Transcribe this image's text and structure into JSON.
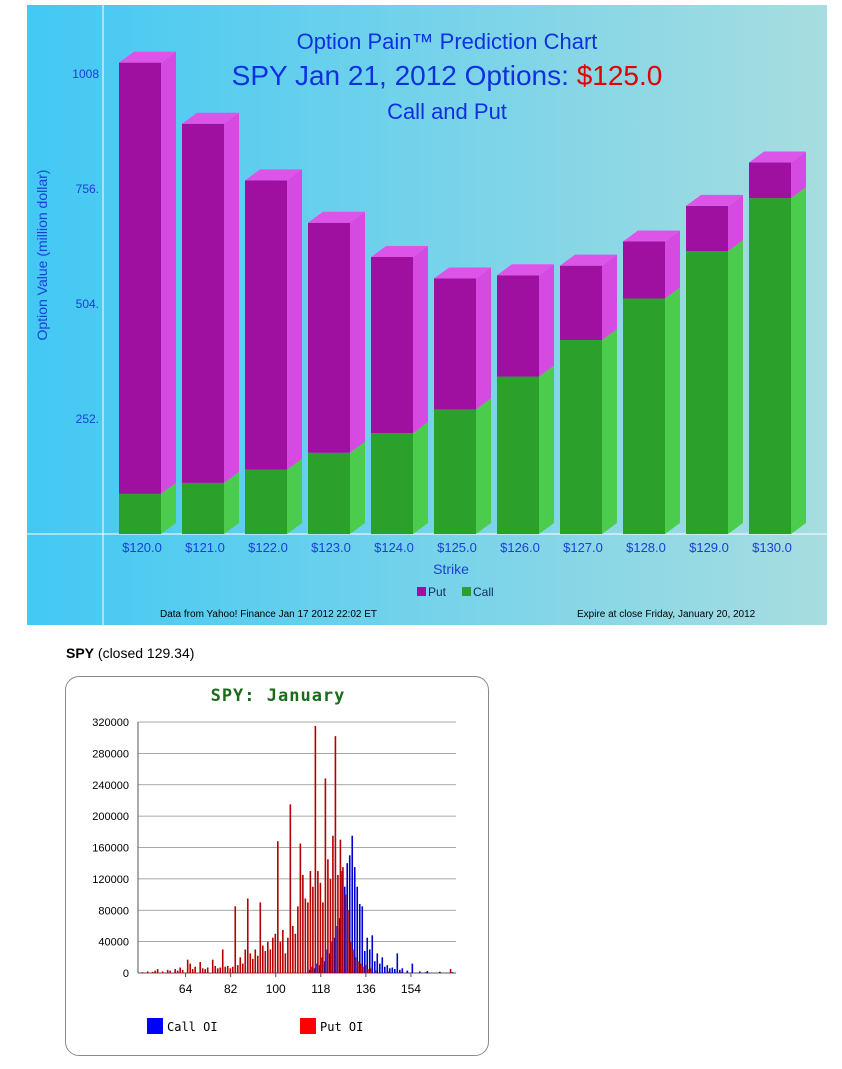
{
  "colors": {
    "bg_left": "#42c8f4",
    "bg_right": "#a7dde0",
    "title_blue": "#1030e0",
    "price_red": "#e00000",
    "axis_text": "#1a40d8",
    "put_front": "#a010a0",
    "put_top": "#dd55e8",
    "put_side": "#d54ae0",
    "call_front": "#2ba02b",
    "call_side": "#4ccc4c",
    "call_oi": "#0000cc",
    "put_oi": "#b40000",
    "legend_call": "#0000ff",
    "legend_put": "#ff0000",
    "chart2_title": "#1a6b1a"
  },
  "chart_data": [
    {
      "type": "bar",
      "stacked": true,
      "title": "Option Pain™ Prediction Chart",
      "subtitle_prefix": "SPY Jan 21, 2012 Options: ",
      "subtitle_price": "$125.0",
      "subtitle2": "Call and Put",
      "xlabel": "Strike",
      "ylabel": "Option Value (million dollar)",
      "ylim": [
        0,
        1008
      ],
      "yticks": [
        252,
        504,
        756,
        1008
      ],
      "ytick_labels": [
        "252.",
        "504.",
        "756.",
        "1008"
      ],
      "categories": [
        "$120.0",
        "$121.0",
        "$122.0",
        "$123.0",
        "$124.0",
        "$125.0",
        "$126.0",
        "$127.0",
        "$128.0",
        "$129.0",
        "$130.0"
      ],
      "series": [
        {
          "name": "Call",
          "values": [
            88,
            112,
            141,
            178,
            221,
            273,
            345,
            425,
            516,
            620,
            736
          ]
        },
        {
          "name": "Put",
          "values": [
            945,
            787,
            634,
            504,
            386,
            287,
            222,
            163,
            125,
            99,
            78
          ]
        }
      ],
      "legend": [
        "Put",
        "Call"
      ],
      "legend_position": "bottom",
      "footer_left": "Data from Yahoo! Finance Jan 17 2012 22:02 ET",
      "footer_right": "Expire at close Friday, January 20, 2012"
    },
    {
      "type": "bar",
      "title": "SPY: January",
      "xlim": [
        45,
        172
      ],
      "ylim": [
        0,
        320000
      ],
      "xticks": [
        64,
        82,
        100,
        118,
        136,
        154
      ],
      "yticks": [
        0,
        40000,
        80000,
        120000,
        160000,
        200000,
        240000,
        280000,
        320000
      ],
      "grid": true,
      "legend_position": "bottom",
      "series": [
        {
          "name": "Call OI",
          "points": [
            [
              113,
              4000
            ],
            [
              114,
              8000
            ],
            [
              115,
              6000
            ],
            [
              116,
              12000
            ],
            [
              117,
              10000
            ],
            [
              118,
              20000
            ],
            [
              119,
              15000
            ],
            [
              120,
              30000
            ],
            [
              121,
              25000
            ],
            [
              122,
              40000
            ],
            [
              123,
              45000
            ],
            [
              124,
              60000
            ],
            [
              125,
              70000
            ],
            [
              126,
              130000
            ],
            [
              127,
              110000
            ],
            [
              128,
              140000
            ],
            [
              129,
              150000
            ],
            [
              130,
              175000
            ],
            [
              131,
              135000
            ],
            [
              132,
              110000
            ],
            [
              133,
              88000
            ],
            [
              134,
              85000
            ],
            [
              135,
              28000
            ],
            [
              136,
              45000
            ],
            [
              137,
              30000
            ],
            [
              138,
              48000
            ],
            [
              139,
              15000
            ],
            [
              140,
              25000
            ],
            [
              141,
              12000
            ],
            [
              142,
              20000
            ],
            [
              143,
              8000
            ],
            [
              144,
              10000
            ],
            [
              145,
              6000
            ],
            [
              146,
              7000
            ],
            [
              147,
              5000
            ],
            [
              148,
              25000
            ],
            [
              149,
              4000
            ],
            [
              150,
              6000
            ],
            [
              152,
              3000
            ],
            [
              154,
              12000
            ],
            [
              157,
              2000
            ],
            [
              160,
              2500
            ],
            [
              165,
              1500
            ],
            [
              170,
              1000
            ]
          ]
        },
        {
          "name": "Put OI",
          "points": [
            [
              47,
              1000
            ],
            [
              49,
              2000
            ],
            [
              51,
              1500
            ],
            [
              52,
              3000
            ],
            [
              53,
              5000
            ],
            [
              55,
              2000
            ],
            [
              57,
              4000
            ],
            [
              58,
              3000
            ],
            [
              60,
              5000
            ],
            [
              61,
              3000
            ],
            [
              62,
              7000
            ],
            [
              63,
              4000
            ],
            [
              65,
              17000
            ],
            [
              66,
              12000
            ],
            [
              67,
              5000
            ],
            [
              68,
              8000
            ],
            [
              70,
              14000
            ],
            [
              71,
              6000
            ],
            [
              72,
              5000
            ],
            [
              73,
              7000
            ],
            [
              75,
              17000
            ],
            [
              76,
              9000
            ],
            [
              77,
              6000
            ],
            [
              78,
              7000
            ],
            [
              79,
              30000
            ],
            [
              80,
              8000
            ],
            [
              81,
              9000
            ],
            [
              82,
              6000
            ],
            [
              83,
              8000
            ],
            [
              84,
              85000
            ],
            [
              85,
              10000
            ],
            [
              86,
              20000
            ],
            [
              87,
              12000
            ],
            [
              88,
              30000
            ],
            [
              89,
              95000
            ],
            [
              90,
              25000
            ],
            [
              91,
              18000
            ],
            [
              92,
              30000
            ],
            [
              93,
              22000
            ],
            [
              94,
              90000
            ],
            [
              95,
              35000
            ],
            [
              96,
              28000
            ],
            [
              97,
              40000
            ],
            [
              98,
              30000
            ],
            [
              99,
              45000
            ],
            [
              100,
              50000
            ],
            [
              101,
              168000
            ],
            [
              102,
              40000
            ],
            [
              103,
              55000
            ],
            [
              104,
              25000
            ],
            [
              105,
              45000
            ],
            [
              106,
              215000
            ],
            [
              107,
              60000
            ],
            [
              108,
              50000
            ],
            [
              109,
              85000
            ],
            [
              110,
              165000
            ],
            [
              111,
              125000
            ],
            [
              112,
              95000
            ],
            [
              113,
              90000
            ],
            [
              114,
              130000
            ],
            [
              115,
              110000
            ],
            [
              116,
              315000
            ],
            [
              117,
              130000
            ],
            [
              118,
              115000
            ],
            [
              119,
              90000
            ],
            [
              120,
              248000
            ],
            [
              121,
              145000
            ],
            [
              122,
              120000
            ],
            [
              123,
              175000
            ],
            [
              124,
              302000
            ],
            [
              125,
              125000
            ],
            [
              126,
              170000
            ],
            [
              127,
              135000
            ],
            [
              128,
              100000
            ],
            [
              129,
              80000
            ],
            [
              130,
              40000
            ],
            [
              131,
              30000
            ],
            [
              132,
              20000
            ],
            [
              133,
              15000
            ],
            [
              134,
              12000
            ],
            [
              135,
              8000
            ],
            [
              136,
              10000
            ],
            [
              137,
              5000
            ],
            [
              138,
              6000
            ],
            [
              140,
              3000
            ],
            [
              145,
              2000
            ],
            [
              150,
              1000
            ],
            [
              160,
              1000
            ],
            [
              170,
              5000
            ]
          ]
        }
      ]
    }
  ],
  "spy_line": {
    "ticker": "SPY",
    "closed": " (closed 129.34)"
  }
}
